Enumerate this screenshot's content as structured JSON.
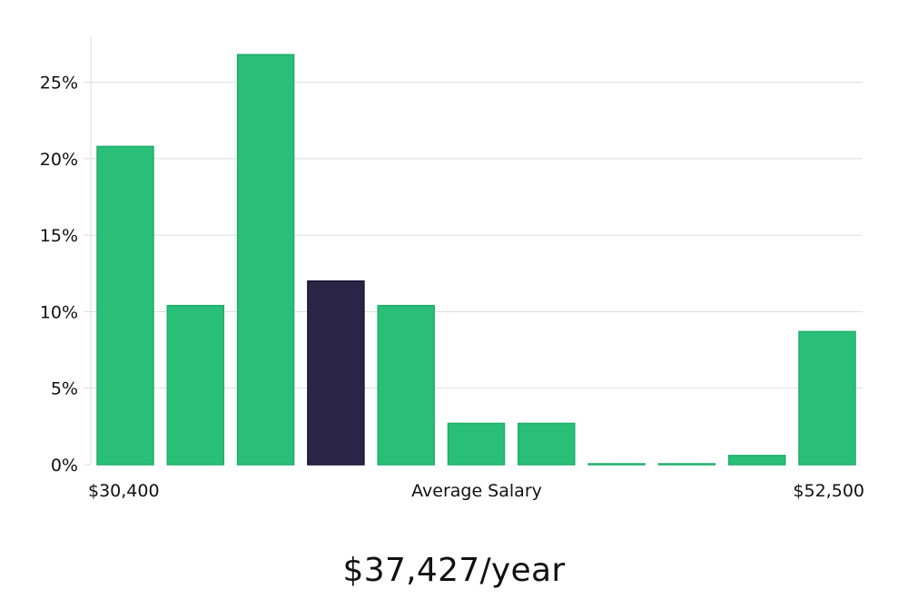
{
  "summary": {
    "average_salary": "$37,427/year"
  },
  "chart_data": {
    "type": "bar",
    "title": "",
    "xlabel": "Average Salary",
    "ylabel": "",
    "x_range_labels": {
      "min": "$30,400",
      "max": "$52,500"
    },
    "values": [
      20.8,
      10.4,
      26.8,
      12.0,
      10.4,
      2.7,
      2.7,
      0.05,
      0.05,
      0.6,
      8.7
    ],
    "highlight_index": 3,
    "ylim": [
      0,
      28
    ],
    "yticks": [
      0,
      5,
      10,
      15,
      20,
      25
    ],
    "ytick_labels": [
      "0%",
      "5%",
      "10%",
      "15%",
      "20%",
      "25%"
    ],
    "grid": true,
    "colors": {
      "bar": "#29bf78",
      "bar_stroke": "#1fae6a",
      "highlight": "#2a2547",
      "highlight_stroke": "#1a1535",
      "grid": "#dddddd",
      "axis": "#dddddd"
    }
  }
}
